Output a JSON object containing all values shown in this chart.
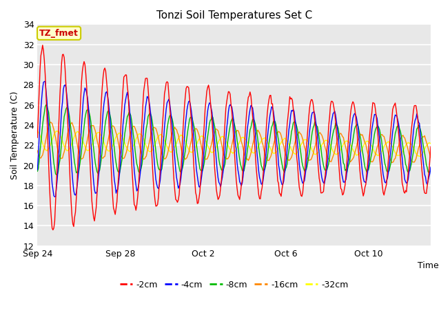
{
  "title": "Tonzi Soil Temperatures Set C",
  "xlabel": "Time",
  "ylabel": "Soil Temperature (C)",
  "ylim": [
    12,
    34
  ],
  "yticks": [
    12,
    14,
    16,
    18,
    20,
    22,
    24,
    26,
    28,
    30,
    32,
    34
  ],
  "annotation_text": "TZ_fmet",
  "annotation_color": "#cc0000",
  "annotation_bg": "#ffffcc",
  "annotation_border": "#cccc00",
  "plot_bg": "#e8e8e8",
  "grid_color": "#ffffff",
  "series": [
    {
      "label": "-2cm",
      "color": "#ff0000"
    },
    {
      "label": "-4cm",
      "color": "#0000ff"
    },
    {
      "label": "-8cm",
      "color": "#00bb00"
    },
    {
      "label": "-16cm",
      "color": "#ff8800"
    },
    {
      "label": "-32cm",
      "color": "#ffff00"
    }
  ],
  "xtick_labels": [
    "Sep 24",
    "Sep 28",
    "Oct 2",
    "Oct 6",
    "Oct 10"
  ],
  "xtick_positions": [
    0,
    4,
    8,
    12,
    16
  ]
}
